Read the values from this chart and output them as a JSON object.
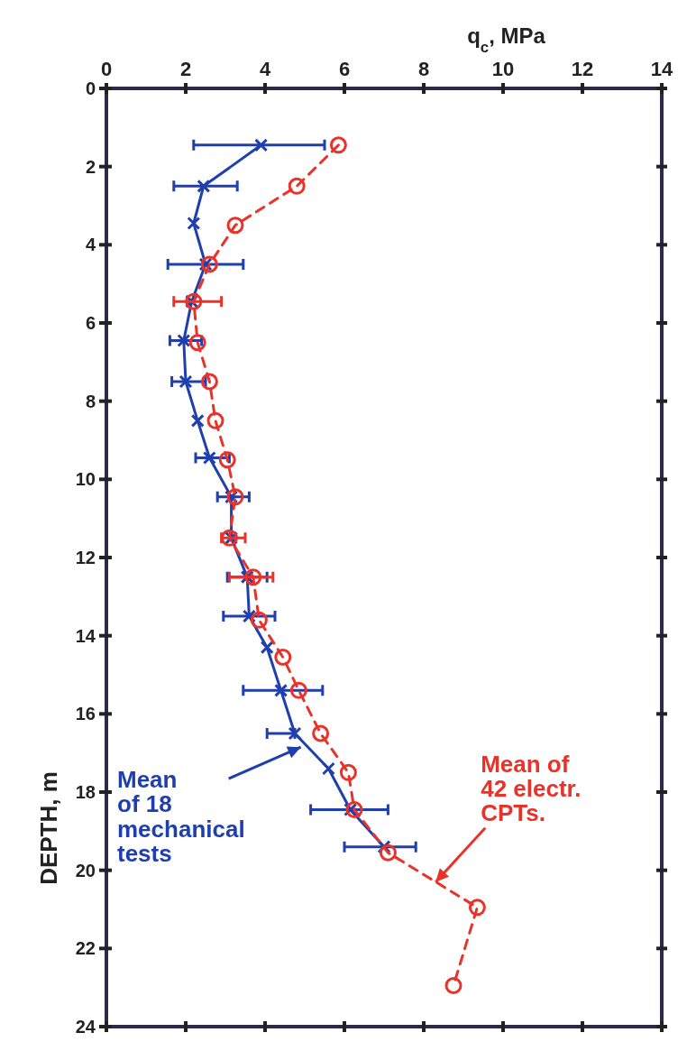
{
  "chart_data": {
    "type": "line",
    "xlabel": "q$_{c}$, MPa",
    "ylabel": "DEPTH, m",
    "xlim": [
      0,
      14
    ],
    "xticks": [
      0,
      2,
      4,
      6,
      8,
      10,
      12,
      14
    ],
    "ylim": [
      24,
      0
    ],
    "yticks": [
      0,
      2,
      4,
      6,
      8,
      10,
      12,
      14,
      16,
      18,
      20,
      22,
      24
    ],
    "grid": false,
    "series": [
      {
        "color": "#1f3fae",
        "marker": "cross",
        "line_style": "solid",
        "x": [
          3.9,
          2.45,
          2.2,
          2.5,
          2.15,
          1.95,
          2.0,
          2.3,
          2.6,
          3.15,
          3.15,
          3.55,
          3.6,
          4.05,
          4.4,
          4.75,
          5.6,
          6.15,
          7.0
        ],
        "values": [
          1.45,
          2.5,
          3.45,
          4.5,
          5.45,
          6.45,
          7.5,
          8.5,
          9.45,
          10.45,
          11.5,
          12.5,
          13.5,
          14.3,
          15.4,
          16.5,
          17.4,
          18.45,
          19.4
        ],
        "xerrors": [
          [
            2.2,
            5.5
          ],
          [
            1.7,
            3.3
          ],
          null,
          [
            1.55,
            3.45
          ],
          null,
          [
            1.6,
            2.4
          ],
          [
            1.65,
            2.5
          ],
          null,
          [
            2.25,
            3.1
          ],
          [
            2.8,
            3.6
          ],
          null,
          [
            3.05,
            4.05
          ],
          [
            2.95,
            4.25
          ],
          null,
          [
            3.45,
            5.45
          ],
          [
            4.05,
            4.75
          ],
          null,
          [
            5.15,
            7.1
          ],
          [
            6.0,
            7.8
          ]
        ]
      },
      {
        "color": "#e8322a",
        "marker": "circle",
        "line_style": "dashed",
        "x": [
          5.85,
          4.8,
          3.25,
          2.6,
          2.2,
          2.3,
          2.6,
          2.75,
          3.05,
          3.25,
          3.1,
          3.7,
          3.85,
          4.45,
          4.85,
          5.4,
          6.1,
          6.25,
          7.1,
          9.35,
          8.75
        ],
        "values": [
          1.45,
          2.5,
          3.5,
          4.5,
          5.45,
          6.5,
          7.5,
          8.5,
          9.5,
          10.45,
          11.5,
          12.5,
          13.6,
          14.55,
          15.4,
          16.5,
          17.5,
          18.45,
          19.55,
          20.95,
          22.95
        ],
        "xerrors": [
          null,
          null,
          null,
          null,
          [
            1.7,
            2.9
          ],
          null,
          null,
          null,
          null,
          null,
          [
            2.9,
            3.5
          ],
          [
            3.1,
            4.2
          ],
          null,
          null,
          null,
          null,
          null,
          null,
          null,
          null,
          null
        ]
      }
    ],
    "annotations": [
      {
        "text": "Mean\nof 18\nmechanical\ntests",
        "x": 4.9,
        "y": 16.85
      },
      {
        "text": "Mean of\n42 electr.\nCPTs.",
        "x": 8.3,
        "y": 20.3
      }
    ]
  }
}
